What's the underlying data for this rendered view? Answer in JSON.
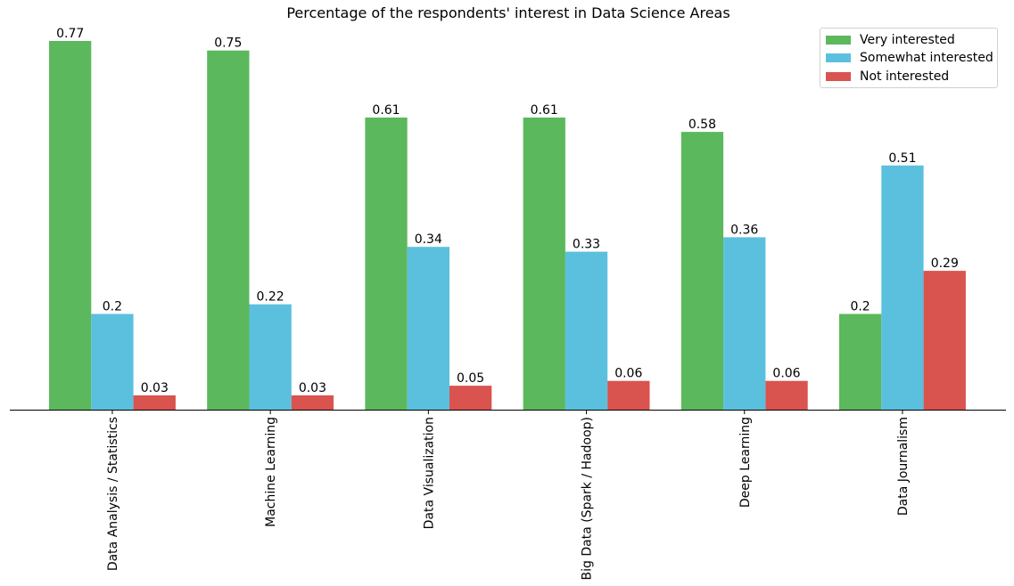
{
  "chart_data": {
    "type": "bar",
    "title": "Percentage of the respondents' interest in Data Science Areas",
    "xlabel": "",
    "ylabel": "",
    "categories": [
      "Data Analysis / Statistics",
      "Machine Learning",
      "Data Visualization",
      "Big Data (Spark / Hadoop)",
      "Deep Learning",
      "Data Journalism"
    ],
    "series": [
      {
        "name": "Very interested",
        "color": "#5cb85c",
        "values": [
          0.77,
          0.75,
          0.61,
          0.61,
          0.58,
          0.2
        ]
      },
      {
        "name": "Somewhat interested",
        "color": "#5bc0de",
        "values": [
          0.2,
          0.22,
          0.34,
          0.33,
          0.36,
          0.51
        ]
      },
      {
        "name": "Not interested",
        "color": "#d9534f",
        "values": [
          0.03,
          0.03,
          0.05,
          0.06,
          0.06,
          0.29
        ]
      }
    ],
    "ylim": [
      0,
      0.8
    ],
    "grid": false,
    "legend_position": "top-right",
    "value_labels": true,
    "x_tick_rotation": "vertical"
  }
}
